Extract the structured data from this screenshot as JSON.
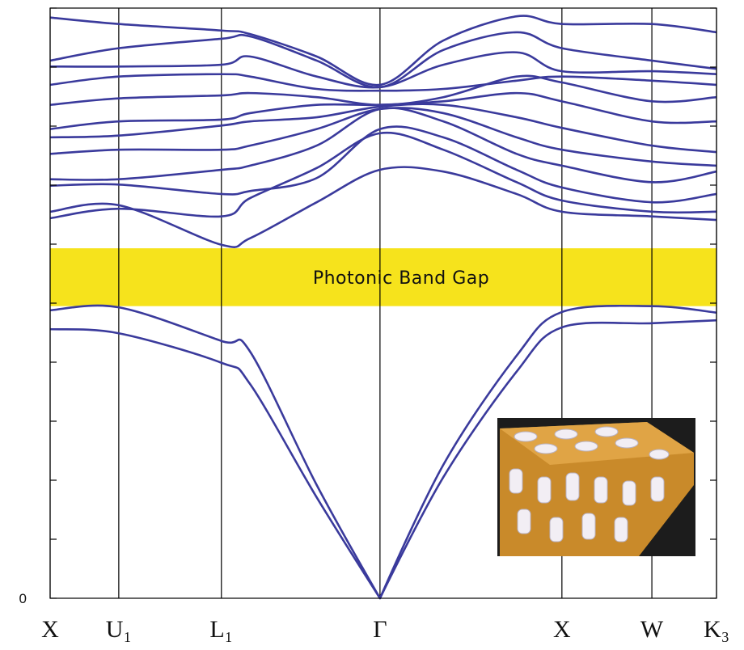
{
  "chart_data": {
    "type": "line",
    "x": [
      0,
      0.103,
      0.257,
      0.3,
      0.4,
      0.495,
      0.59,
      0.7,
      0.768,
      0.903,
      1.0
    ],
    "xlim": [
      0,
      1
    ],
    "xticks": [
      {
        "value": 0,
        "label": "X"
      },
      {
        "value": 0.103,
        "label": "U₁"
      },
      {
        "value": 0.257,
        "label": "L₁"
      },
      {
        "value": 0.495,
        "label": "Γ"
      },
      {
        "value": 0.768,
        "label": "X"
      },
      {
        "value": 0.903,
        "label": "W"
      },
      {
        "value": 1,
        "label": "K₃"
      }
    ],
    "ylim": [
      0,
      10
    ],
    "yticks": [
      0
    ],
    "minor_yticks": [
      1,
      2,
      3,
      4,
      5,
      6,
      7,
      8,
      9,
      10
    ],
    "color": "#3a3a9c",
    "series": [
      {
        "values": [
          4.56,
          4.49,
          3.99,
          3.63,
          1.71,
          0,
          2.05,
          3.84,
          4.59,
          4.66,
          4.71
        ]
      },
      {
        "values": [
          4.88,
          4.93,
          4.36,
          4.18,
          1.92,
          0,
          2.26,
          4.11,
          4.85,
          4.95,
          4.84
        ]
      },
      {
        "values": [
          6.55,
          6.66,
          5.99,
          6.1,
          6.71,
          7.26,
          7.23,
          6.85,
          6.55,
          6.47,
          6.41
        ]
      },
      {
        "values": [
          6.44,
          6.6,
          6.47,
          6.78,
          7.29,
          7.88,
          7.6,
          7.05,
          6.74,
          6.55,
          6.55
        ]
      },
      {
        "values": [
          6.99,
          7.01,
          6.85,
          6.9,
          7.12,
          7.95,
          7.81,
          7.26,
          6.96,
          6.71,
          6.85
        ]
      },
      {
        "values": [
          7.1,
          7.1,
          7.26,
          7.33,
          7.67,
          8.29,
          8.08,
          7.53,
          7.33,
          7.05,
          7.23
        ]
      },
      {
        "values": [
          7.53,
          7.6,
          7.6,
          7.67,
          7.95,
          8.29,
          8.22,
          7.81,
          7.6,
          7.4,
          7.33
        ]
      },
      {
        "values": [
          7.81,
          7.84,
          8.01,
          8.08,
          8.15,
          8.33,
          8.36,
          8.15,
          7.97,
          7.67,
          7.56
        ]
      },
      {
        "values": [
          7.95,
          8.08,
          8.11,
          8.22,
          8.36,
          8.36,
          8.42,
          8.56,
          8.42,
          8.08,
          8.08
        ]
      },
      {
        "values": [
          8.36,
          8.47,
          8.52,
          8.56,
          8.49,
          8.36,
          8.49,
          8.84,
          8.74,
          8.42,
          8.49
        ]
      },
      {
        "values": [
          8.7,
          8.84,
          8.88,
          8.84,
          8.63,
          8.6,
          8.63,
          8.77,
          8.84,
          8.77,
          8.7
        ]
      },
      {
        "values": [
          9.01,
          9.01,
          9.04,
          9.18,
          8.84,
          8.66,
          9.04,
          9.25,
          8.93,
          8.93,
          8.88
        ]
      },
      {
        "values": [
          9.11,
          9.32,
          9.48,
          9.52,
          9.11,
          8.66,
          9.29,
          9.59,
          9.32,
          9.11,
          8.97
        ]
      },
      {
        "values": [
          9.84,
          9.73,
          9.62,
          9.56,
          9.18,
          8.7,
          9.45,
          9.86,
          9.73,
          9.73,
          9.59
        ]
      }
    ],
    "band_gap": {
      "range": [
        4.95,
        5.93
      ],
      "label": "Photonic Band Gap",
      "color": "#f6e31c"
    }
  }
}
